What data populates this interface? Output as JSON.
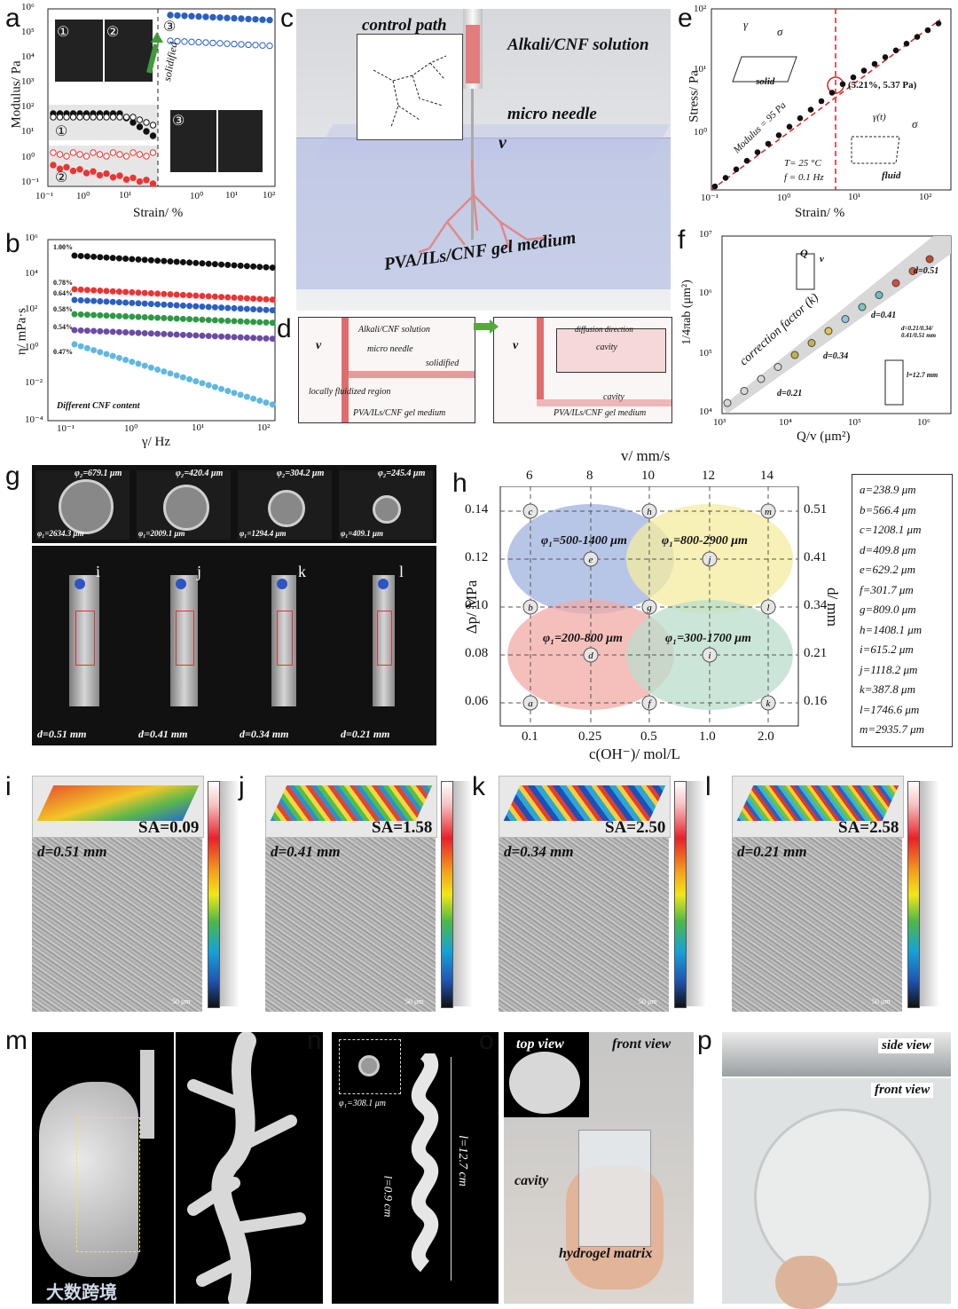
{
  "panels": {
    "a": "a",
    "b": "b",
    "c": "c",
    "d": "d",
    "e": "e",
    "f": "f",
    "g": "g",
    "h": "h",
    "i": "i",
    "j": "j",
    "k": "k",
    "l": "l",
    "m": "m",
    "n": "n",
    "o": "o",
    "p": "p"
  },
  "a": {
    "ylabel": "Modulus/ Pa",
    "xlabel": "Strain/ %",
    "yticks": [
      "10⁶",
      "10⁵",
      "10⁴",
      "10³",
      "10²",
      "10¹",
      "10⁰",
      "10⁻¹"
    ],
    "xticks_left": [
      "10⁻¹",
      "10⁰",
      "10¹"
    ],
    "xticks_right": [
      "10⁰",
      "10¹",
      "10²"
    ],
    "annot_solidified": "solidified",
    "circled": [
      "①",
      "②",
      "③"
    ]
  },
  "b": {
    "ylabel": "η/ mPa·s",
    "xlabel": "γ/ Hz",
    "yticks": [
      "10⁶",
      "10⁴",
      "10²",
      "10⁰",
      "10⁻²",
      "10⁻⁴"
    ],
    "xticks": [
      "10⁻¹",
      "10⁰",
      "10¹",
      "10²"
    ],
    "series_labels": [
      "1.00%",
      "0.78%",
      "0.64%",
      "0.58%",
      "0.54%",
      "0.47%"
    ],
    "note": "Different CNF content"
  },
  "c": {
    "control_path": "control path",
    "alkali": "Alkali/CNF solution",
    "needle": "micro needle",
    "v": "v",
    "medium": "PVA/ILs/CNF gel medium"
  },
  "d": {
    "alkali": "Alkali/CNF solution",
    "needle": "micro needle",
    "solidified": "solidified",
    "fluidized": "locally fluidized region",
    "medium": "PVA/ILs/CNF gel medium",
    "diffusion": "diffusion direction",
    "cavity": "cavity",
    "v": "v"
  },
  "e": {
    "ylabel": "Stress/ Pa",
    "xlabel": "Strain/ %",
    "yticks": [
      "10²",
      "10¹",
      "10⁰"
    ],
    "xticks": [
      "10⁻¹",
      "10⁰",
      "10¹",
      "10²"
    ],
    "point": "(5.21%, 5.37 Pa)",
    "modulus": "Modulus = 95 Pa",
    "temp": "T= 25 °C",
    "freq": "f = 0.1 Hz",
    "solid": "solid",
    "fluid": "fluid",
    "sigma": "σ",
    "gamma": "γ",
    "gamma_t": "γ(t)"
  },
  "f": {
    "ylabel": "1/4πab (μm²)",
    "xlabel": "Q/v (μm²)",
    "yticks": [
      "10⁷",
      "10⁶",
      "10⁵",
      "10⁴"
    ],
    "xticks": [
      "10³",
      "10⁴",
      "10⁵",
      "10⁶"
    ],
    "band": "correction factor (k)",
    "d_labels": [
      "d=0.51",
      "d=0.41",
      "d=0.34",
      "d=0.21"
    ],
    "tube_d": "d=0.21/0.34/ 0.41/0.51 mm",
    "tube_l": "l=12.7 mm",
    "Q": "Q",
    "v": "v"
  },
  "g": {
    "phi2": [
      "φ₂=679.1 μm",
      "φ₂=420.4 μm",
      "φ₂=304.2 μm",
      "φ₂=245.4 μm"
    ],
    "phi1": [
      "φ₁=2634.3 μm",
      "φ₁=2009.1 μm",
      "φ₁=1294.4 μm",
      "φ₁=409.1 μm"
    ],
    "letters": [
      "i",
      "j",
      "k",
      "l"
    ],
    "d": [
      "d=0.51 mm",
      "d=0.41 mm",
      "d=0.34 mm",
      "d=0.21 mm"
    ]
  },
  "h": {
    "top_label": "v/ mm/s",
    "bottom_label": "c(OH⁻)/ mol/L",
    "left_label": "Δp/ MPa",
    "right_label": "d/ mm",
    "top_ticks": [
      "6",
      "8",
      "10",
      "12",
      "14"
    ],
    "bottom_ticks": [
      "0.1",
      "0.25",
      "0.5",
      "1.0",
      "2.0"
    ],
    "left_ticks": [
      "0.14",
      "0.12",
      "0.10",
      "0.08",
      "0.06"
    ],
    "right_ticks": [
      "0.51",
      "0.41",
      "0.34",
      "0.21",
      "0.16"
    ],
    "regions": [
      "φ₁=500-1400 μm",
      "φ₁=800-2900 μm",
      "φ₁=200-800 μm",
      "φ₁=300-1700 μm"
    ],
    "legend": [
      "a=238.9 μm",
      "b=566.4 μm",
      "c=1208.1 μm",
      "d=409.8 μm",
      "e=629.2 μm",
      "f=301.7 μm",
      "g=809.0 μm",
      "h=1408.1 μm",
      "i=615.2 μm",
      "j=1118.2 μm",
      "k=387.8 μm",
      "l=1746.6 μm",
      "m=2935.7 μm"
    ]
  },
  "sa": {
    "values": [
      "SA=0.09",
      "SA=1.58",
      "SA=2.50",
      "SA=2.58"
    ],
    "d": [
      "d=0.51 mm",
      "d=0.41 mm",
      "d=0.34 mm",
      "d=0.21 mm"
    ],
    "scale": "50 μm"
  },
  "n": {
    "phi": "φ₁=308.1 μm",
    "l1": "l=0.9 cm",
    "l2": "l=12.7 cm"
  },
  "o": {
    "top": "top view",
    "front": "front view",
    "cavity": "cavity",
    "matrix": "hydrogel matrix"
  },
  "p": {
    "side": "side view",
    "front": "front view"
  },
  "watermark": "大数跨境"
}
